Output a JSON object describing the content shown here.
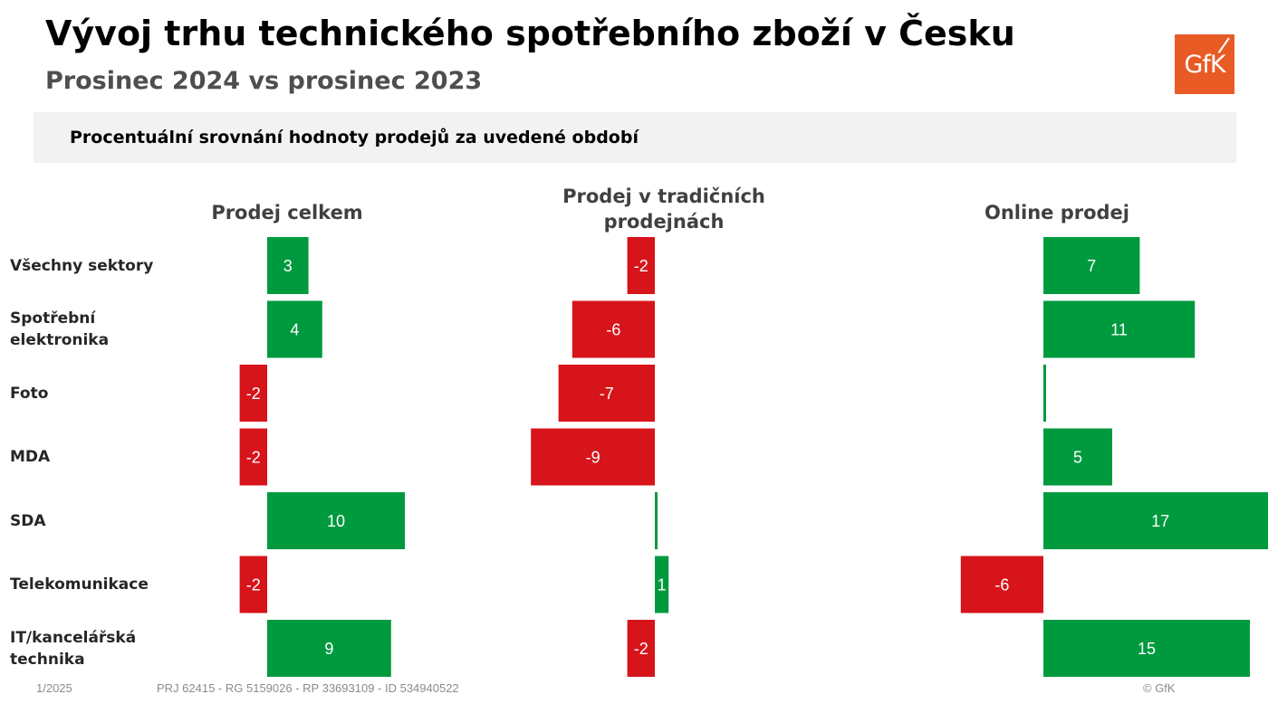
{
  "header": {
    "title": "Vývoj trhu technického spotřebního zboží v Česku",
    "subtitle": "Prosinec 2024 vs prosinec 2023",
    "logo_text": "GfK",
    "logo_color": "#e95b25"
  },
  "band": {
    "text": "Procentuální srovnání hodnoty prodejů za uvedené období",
    "background": "#f2f2f2"
  },
  "footer": {
    "date": "1/2025",
    "reference": "PRJ 62415 - RG 5159026 - RP 33693109 - ID 534940522",
    "copyright": "© GfK"
  },
  "chart_data": {
    "type": "bar",
    "orientation": "horizontal",
    "categories": [
      [
        "Všechny sektory"
      ],
      [
        "Spotřební",
        "elektronika"
      ],
      [
        "Foto"
      ],
      [
        "MDA"
      ],
      [
        "SDA"
      ],
      [
        "Telekomunikace"
      ],
      [
        "IT/kancelářská",
        "technika"
      ]
    ],
    "positive_color": "#009a3e",
    "negative_color": "#d7141a",
    "label_color": "#ffffff",
    "series": [
      {
        "name": "Prodej celkem",
        "header_lines": [
          "Prodej celkem"
        ],
        "values": [
          3,
          4,
          -2,
          -2,
          10,
          -2,
          9
        ],
        "labels": [
          "3",
          "4",
          "-2",
          "-2",
          "10",
          "-2",
          "9"
        ]
      },
      {
        "name": "Prodej v tradičních prodejnách",
        "header_lines": [
          "Prodej v tradičních",
          "prodejnách"
        ],
        "values": [
          -2,
          -6,
          -7,
          -9,
          0.1,
          1,
          -2
        ],
        "labels": [
          "-2",
          "-6",
          "-7",
          "-9",
          "",
          "1",
          "-2"
        ]
      },
      {
        "name": "Online prodej",
        "header_lines": [
          "Online prodej"
        ],
        "values": [
          7,
          11,
          0.1,
          5,
          17,
          -6,
          15
        ],
        "labels": [
          "7",
          "11",
          "",
          "5",
          "17",
          "-6",
          "15"
        ]
      }
    ]
  }
}
